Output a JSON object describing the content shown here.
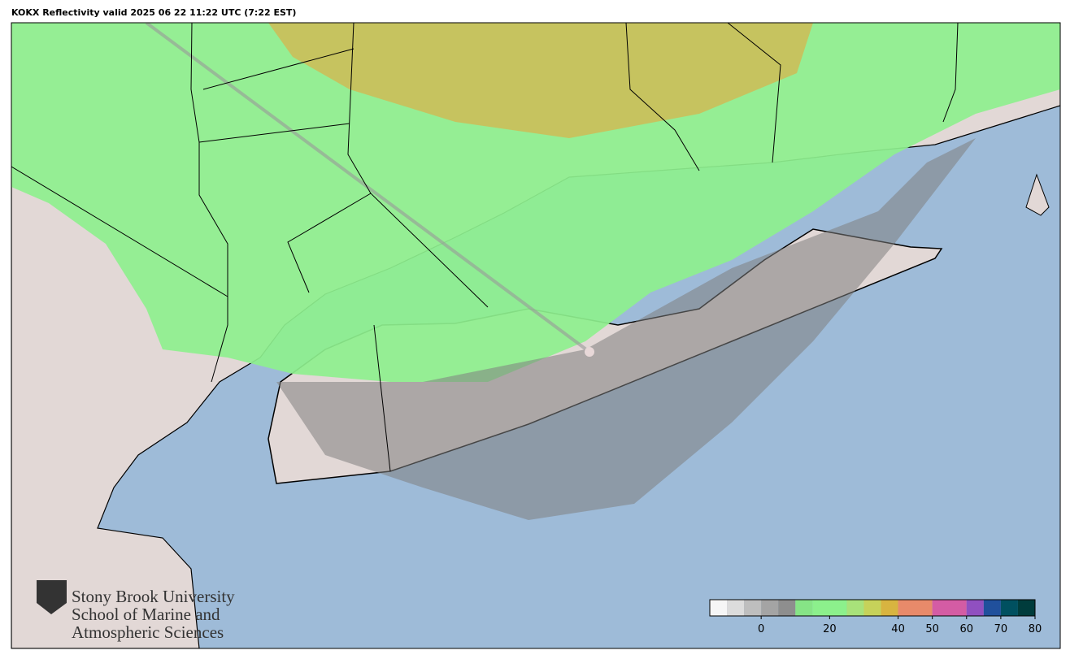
{
  "title": "KOKX Reflectivity valid 2025 06 22 11:22 UTC (7:22 EST)",
  "logo": {
    "line1": "Stony Brook University",
    "line2": "School of Marine and",
    "line3": "Atmospheric Sciences"
  },
  "colorbar": {
    "range": [
      -15,
      80
    ],
    "ticks": [
      0,
      20,
      40,
      50,
      60,
      70,
      80
    ],
    "stops": [
      {
        "value": -15,
        "color": "#f6f6f6"
      },
      {
        "value": -10,
        "color": "#dcdcdc"
      },
      {
        "value": -5,
        "color": "#bebebe"
      },
      {
        "value": 0,
        "color": "#a4a4a4"
      },
      {
        "value": 5,
        "color": "#8e8e8e"
      },
      {
        "value": 10,
        "color": "#86e486"
      },
      {
        "value": 15,
        "color": "#8cf08c"
      },
      {
        "value": 25,
        "color": "#a8e27a"
      },
      {
        "value": 30,
        "color": "#c6d25a"
      },
      {
        "value": 35,
        "color": "#d8b440"
      },
      {
        "value": 40,
        "color": "#e88a6a"
      },
      {
        "value": 50,
        "color": "#d45ca4"
      },
      {
        "value": 60,
        "color": "#9050c0"
      },
      {
        "value": 65,
        "color": "#20509c"
      },
      {
        "value": 70,
        "color": "#005060"
      },
      {
        "value": 75,
        "color": "#003c3c"
      }
    ]
  }
}
